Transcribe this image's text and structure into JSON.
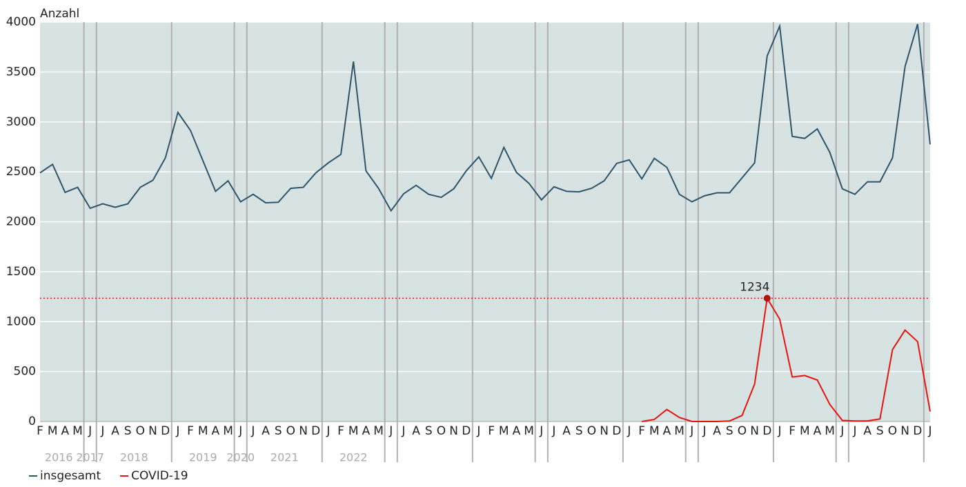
{
  "chart_data": {
    "type": "line",
    "y_label": "Anzahl",
    "categories": [
      "F",
      "M",
      "A",
      "M",
      "J",
      "J",
      "A",
      "S",
      "O",
      "N",
      "D",
      "J",
      "F",
      "M",
      "A",
      "M",
      "J",
      "J",
      "A",
      "S",
      "O",
      "N",
      "D",
      "J",
      "F",
      "M",
      "A",
      "M",
      "J",
      "J",
      "A",
      "S",
      "O",
      "N",
      "D",
      "J",
      "F",
      "M",
      "A",
      "M",
      "J",
      "J",
      "A",
      "S",
      "O",
      "N",
      "D",
      "J",
      "F",
      "M",
      "A",
      "M",
      "J",
      "J",
      "A",
      "S",
      "O",
      "N",
      "D",
      "J",
      "F",
      "M",
      "A",
      "M",
      "J",
      "J",
      "A",
      "S",
      "O",
      "N",
      "D",
      "J"
    ],
    "years": [
      "2016",
      "2017",
      "2018",
      "2019",
      "2020",
      "2021",
      "2022"
    ],
    "series": [
      {
        "name": "insgesamt",
        "color": "#2d5468",
        "values": [
          2490,
          2575,
          2295,
          2345,
          2135,
          2180,
          2145,
          2180,
          2345,
          2415,
          2640,
          3095,
          2915,
          2610,
          2305,
          2410,
          2200,
          2275,
          2190,
          2195,
          2335,
          2345,
          2490,
          2590,
          2675,
          3605,
          2510,
          2335,
          2110,
          2280,
          2365,
          2275,
          2245,
          2330,
          2510,
          2650,
          2435,
          2745,
          2495,
          2385,
          2220,
          2350,
          2305,
          2300,
          2335,
          2410,
          2585,
          2620,
          2430,
          2635,
          2545,
          2275,
          2200,
          2260,
          2290,
          2290,
          2440,
          2590,
          3660,
          3960,
          2855,
          2835,
          2930,
          2695,
          2330,
          2275,
          2400,
          2400,
          2640,
          3555,
          3980,
          2775
        ]
      },
      {
        "name": "COVID-19",
        "color": "#e8120c",
        "values": [
          null,
          null,
          null,
          null,
          null,
          null,
          null,
          null,
          null,
          null,
          null,
          null,
          null,
          null,
          null,
          null,
          null,
          null,
          null,
          null,
          null,
          null,
          null,
          null,
          null,
          null,
          null,
          null,
          null,
          null,
          null,
          null,
          null,
          null,
          null,
          null,
          null,
          null,
          null,
          null,
          null,
          null,
          null,
          null,
          null,
          null,
          null,
          null,
          0,
          20,
          120,
          40,
          0,
          0,
          0,
          5,
          60,
          375,
          1234,
          1025,
          445,
          460,
          415,
          170,
          10,
          5,
          5,
          25,
          720,
          915,
          800,
          100
        ]
      }
    ],
    "reference_line": {
      "value": 1234,
      "color": "#e8120c"
    },
    "ylim": [
      0,
      4000
    ],
    "yticks": [
      0,
      500,
      1000,
      1500,
      2000,
      2500,
      3000,
      3500,
      4000
    ],
    "grid": true
  }
}
